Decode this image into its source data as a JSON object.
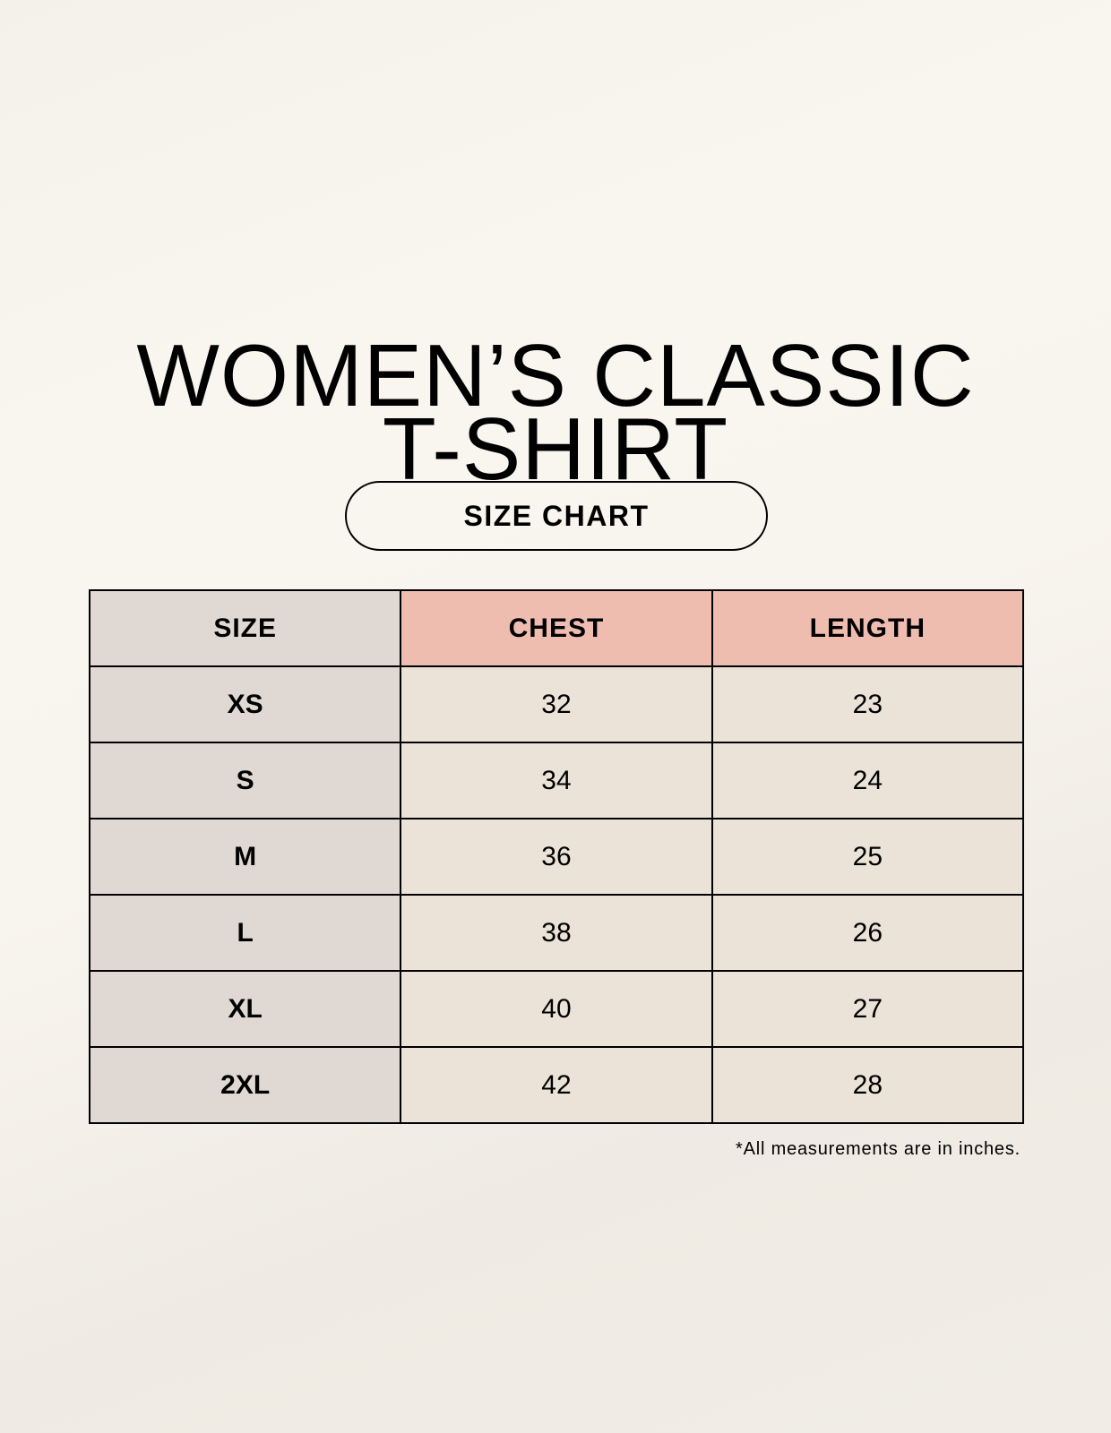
{
  "title": {
    "line1": "WOMEN’S CLASSIC",
    "line2": "T-SHIRT"
  },
  "subtitle": "SIZE CHART",
  "table": {
    "headers": [
      "SIZE",
      "CHEST",
      "LENGTH"
    ],
    "rows": [
      [
        "XS",
        "32",
        "23"
      ],
      [
        "S",
        "34",
        "24"
      ],
      [
        "M",
        "36",
        "25"
      ],
      [
        "L",
        "38",
        "26"
      ],
      [
        "XL",
        "40",
        "27"
      ],
      [
        "2XL",
        "42",
        "28"
      ]
    ]
  },
  "footnote": "*All measurements are in inches.",
  "colors": {
    "size_column": "#e0d8d3",
    "header_accent": "#efbdb0",
    "value_cells": "#ebe3d8"
  }
}
